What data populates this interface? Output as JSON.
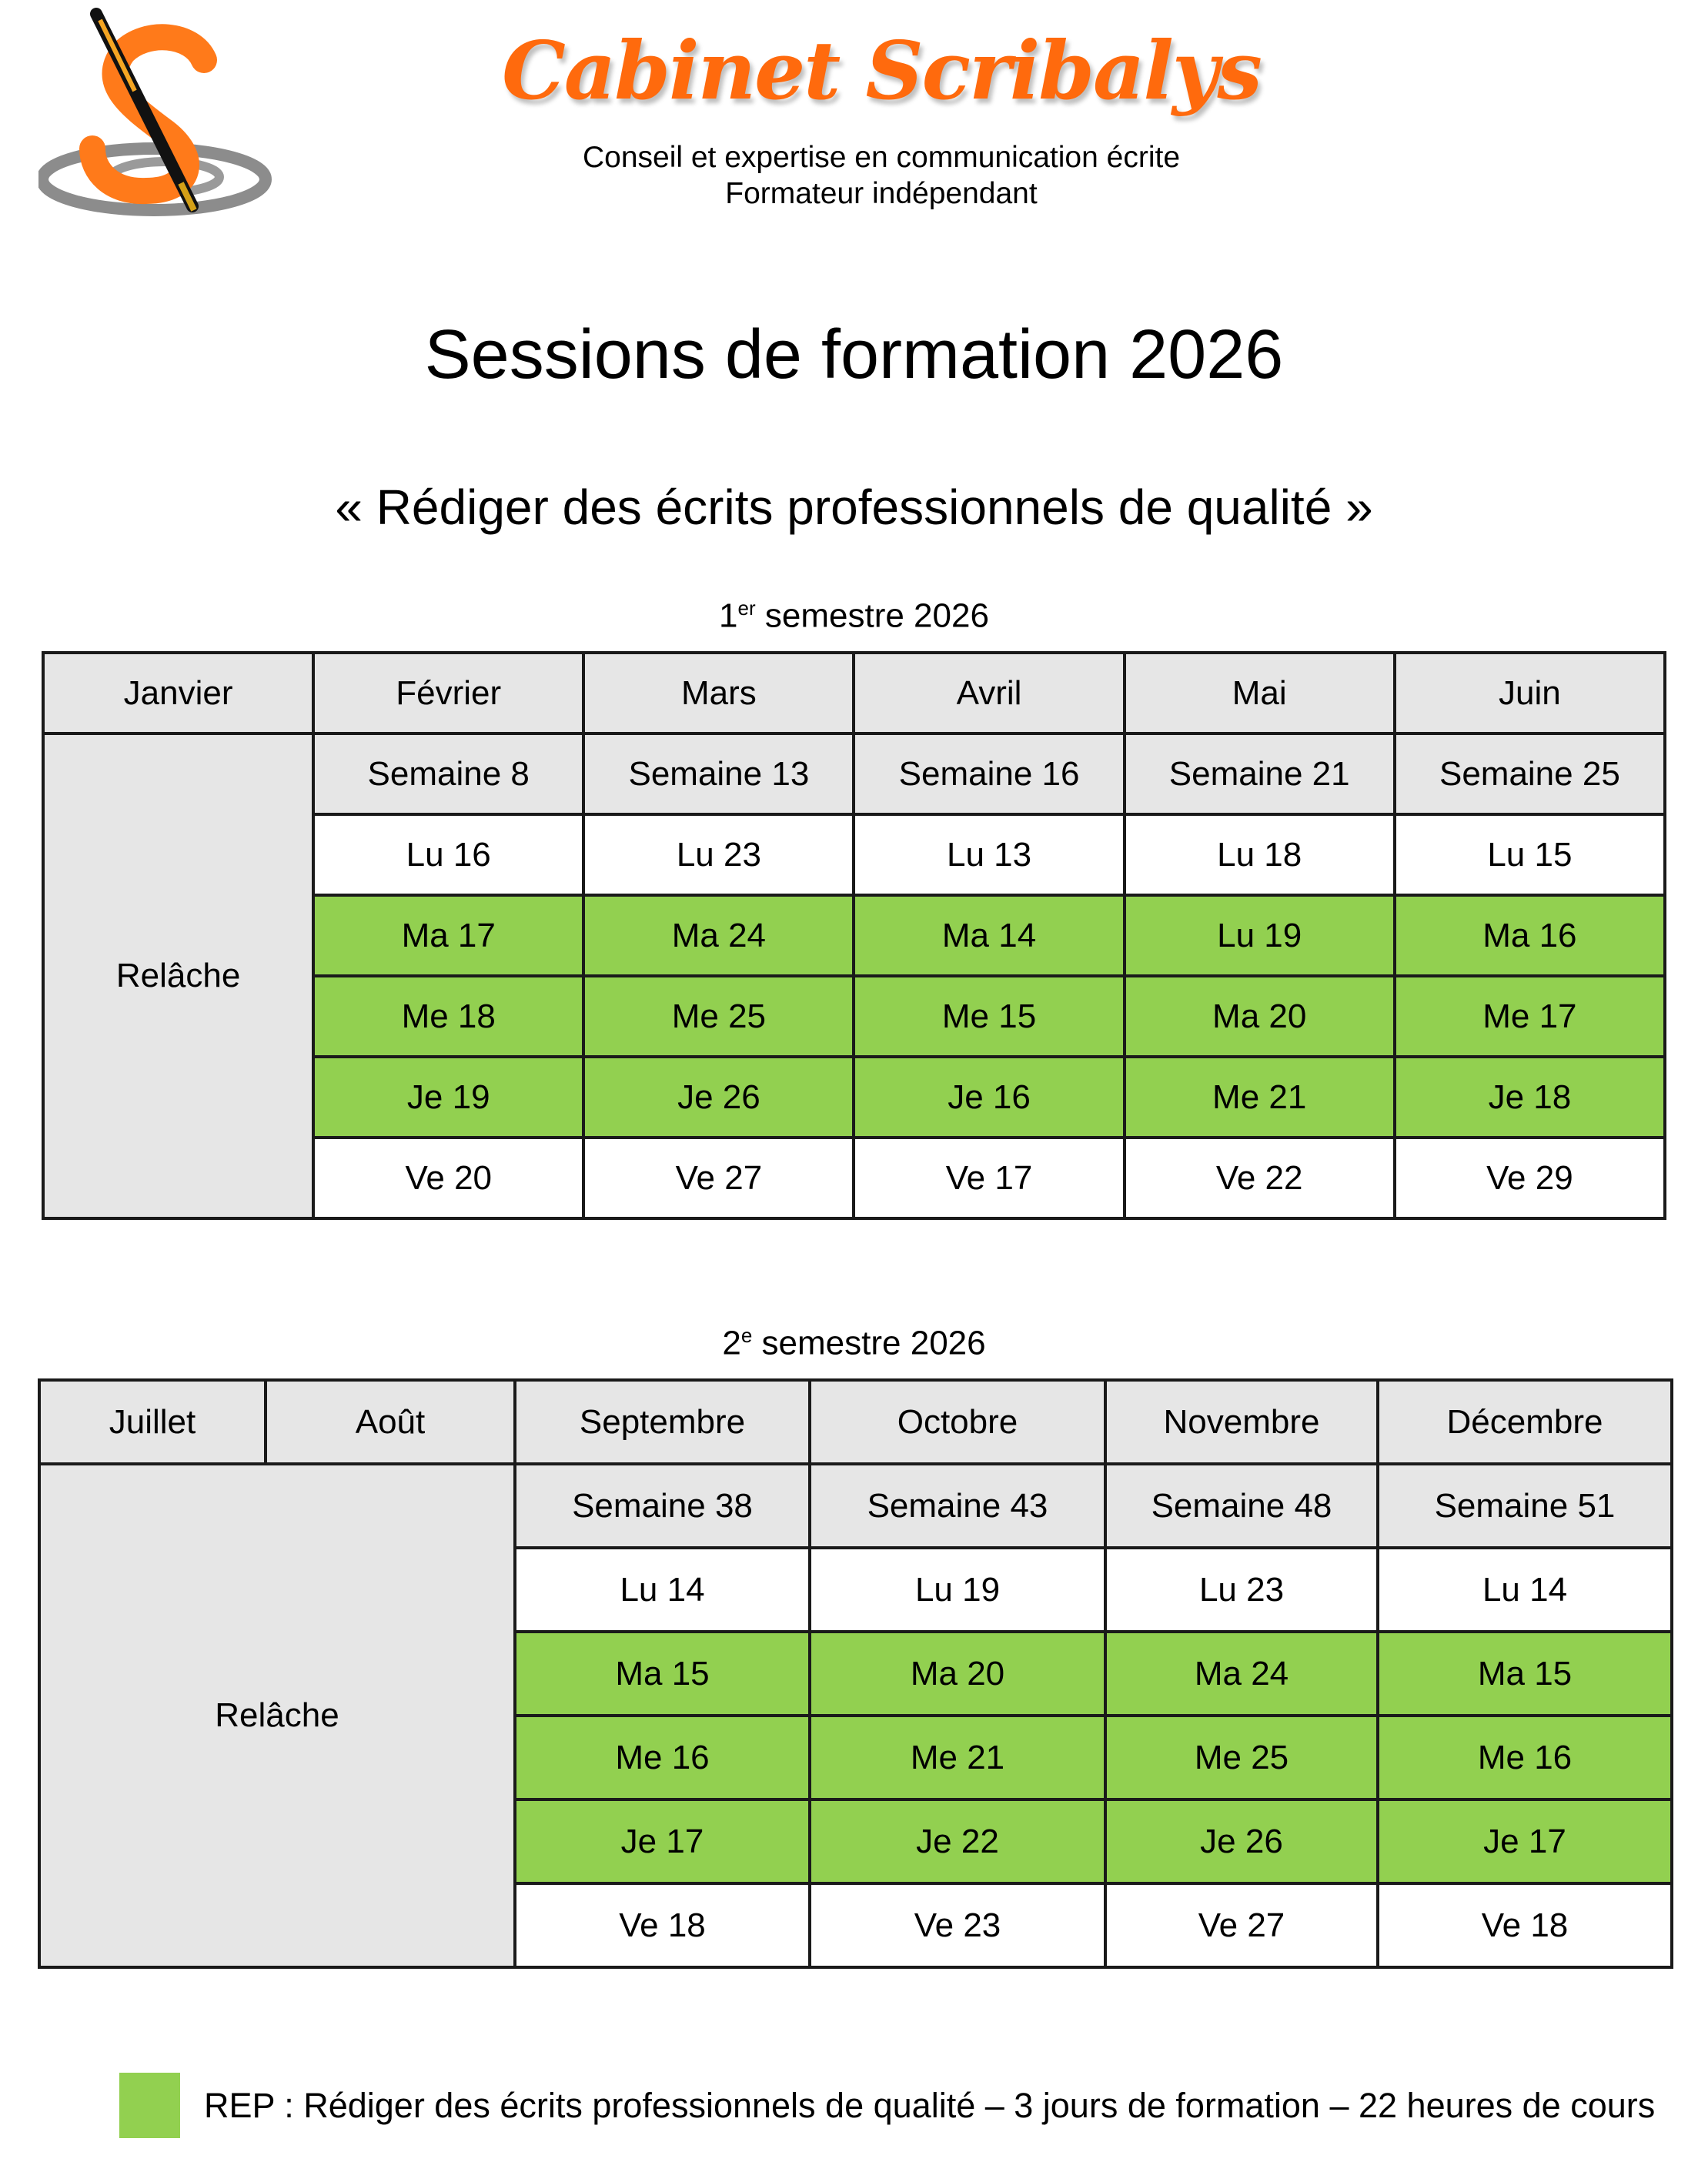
{
  "header": {
    "brand": "Cabinet Scribalys",
    "tagline_1": "Conseil et expertise en communication écrite",
    "tagline_2": "Formateur indépendant",
    "logo_icon": "s-pen-logo-icon"
  },
  "title": "Sessions de formation 2026",
  "course_title": "« Rédiger des écrits professionnels de qualité »",
  "colors": {
    "session_day": "#92d050",
    "header_fill": "#e6e6e6",
    "brand": "#ff6a0d"
  },
  "semester1": {
    "label_num": "1",
    "label_sup": "er",
    "label_rest": " semestre 2026",
    "months": [
      "Janvier",
      "Février",
      "Mars",
      "Avril",
      "Mai",
      "Juin"
    ],
    "closed_label": "Relâche",
    "weeks": [
      "Semaine 8",
      "Semaine 13",
      "Semaine 16",
      "Semaine 21",
      "Semaine 25"
    ],
    "days": [
      [
        "Lu 16",
        "Lu 23",
        "Lu 13",
        "Lu 18",
        "Lu 15"
      ],
      [
        "Ma 17",
        "Ma 24",
        "Ma 14",
        "Lu 19",
        "Ma 16"
      ],
      [
        "Me 18",
        "Me 25",
        "Me 15",
        "Ma 20",
        "Me 17"
      ],
      [
        "Je 19",
        "Je 26",
        "Je 16",
        "Me 21",
        "Je 18"
      ],
      [
        "Ve 20",
        "Ve 27",
        "Ve 17",
        "Ve 22",
        "Ve 29"
      ]
    ]
  },
  "semester2": {
    "label_num": "2",
    "label_sup": "e",
    "label_rest": " semestre 2026",
    "months": [
      "Juillet",
      "Août",
      "Septembre",
      "Octobre",
      "Novembre",
      "Décembre"
    ],
    "closed_label": "Relâche",
    "weeks": [
      "Semaine 38",
      "Semaine 43",
      "Semaine 48",
      "Semaine 51"
    ],
    "days": [
      [
        "Lu 14",
        "Lu 19",
        "Lu 23",
        "Lu 14"
      ],
      [
        "Ma 15",
        "Ma 20",
        "Ma 24",
        "Ma 15"
      ],
      [
        "Me 16",
        "Me 21",
        "Me 25",
        "Me 16"
      ],
      [
        "Je 17",
        "Je 22",
        "Je 26",
        "Je 17"
      ],
      [
        "Ve 18",
        "Ve 23",
        "Ve 27",
        "Ve 18"
      ]
    ]
  },
  "legend": {
    "text": "REP : Rédiger des écrits professionnels de qualité – 3 jours de formation – 22 heures de cours"
  }
}
